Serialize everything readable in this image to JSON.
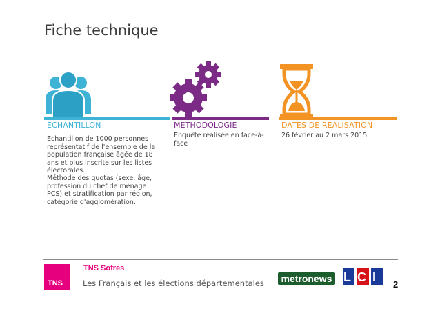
{
  "page_title": "Fiche technique",
  "colors": {
    "blue": "#3fb3d6",
    "purple": "#7b2a86",
    "orange": "#f39324",
    "pink": "#e6007e",
    "green": "#1d5c2c"
  },
  "columns": [
    {
      "icon": "people-icon",
      "title": "ECHANTILLON",
      "paragraphs": [
        "Echantillon de 1000 personnes représentatif de l'ensemble de la population française âgée de 18 ans et plus inscrite sur les listes électorales.",
        "Méthode des quotas (sexe, âge, profession du chef de ménage PCS) et stratification par région, catégorie d'agglomération."
      ]
    },
    {
      "icon": "gears-icon",
      "title": "METHODOLOGIE",
      "paragraphs": [
        "Enquête réalisée en face-à-face"
      ]
    },
    {
      "icon": "hourglass-icon",
      "title": "DATES DE REALISATION",
      "paragraphs": [
        "26 février au 2 mars 2015"
      ]
    }
  ],
  "footer": {
    "tns_logo": "TNS",
    "brand": "TNS Sofres",
    "subtitle": "Les Français et les élections départementales",
    "metronews": "metronews",
    "lci": "LCI",
    "page_number": "2"
  }
}
